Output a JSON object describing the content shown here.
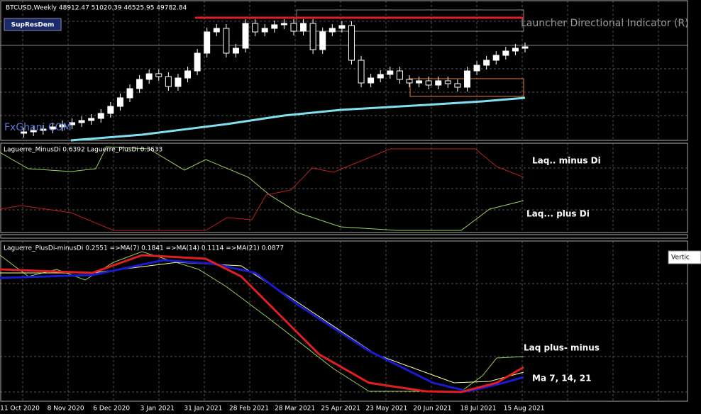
{
  "header": {
    "symbol": "BTCUSD,Weekly  48912.47 51020.39 46525.95 49782.84",
    "button": "SupResDem",
    "indicator": "Launcher Directional Indicator (R)",
    "watermark": "FxGhani.COM"
  },
  "panel2": {
    "legend": "Laguerre_MinusDi 0.6392  Laguerre_PlusDi 0.3633",
    "label_minus": "Laq.. minus Di",
    "label_plus": "Laq... plus Di"
  },
  "panel3": {
    "legend": "Laguerre_PlusDi-minusDi 0.2551   =>MA(7) 0.1841   =>MA(14) 0.1114   =>MA(21) 0.0877",
    "label_pm": "Laq  plus- minus",
    "label_ma": "Ma 7, 14, 21",
    "tooltip": "Vertic"
  },
  "dates": [
    "11 Oct 2020",
    "8 Nov 2020",
    "6 Dec 2020",
    "3 Jan 2021",
    "31 Jan 2021",
    "28 Feb 2021",
    "28 Mar 2021",
    "25 Apr 2021",
    "23 May 2021",
    "20 Jun 2021",
    "18 Jul 2021",
    "15 Aug 2021"
  ]
}
